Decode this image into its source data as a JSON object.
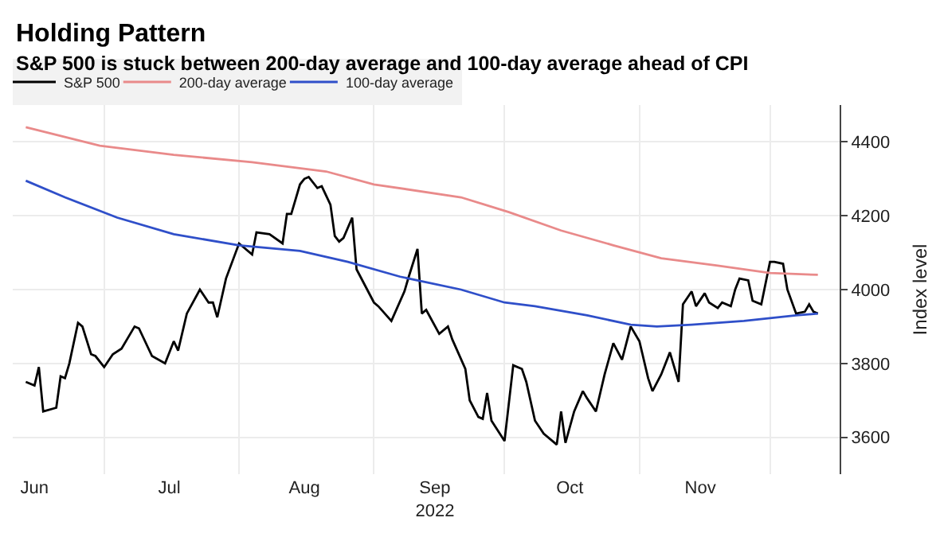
{
  "chart_data": {
    "type": "line",
    "title": "Holding Pattern",
    "subtitle": "S&P 500 is stuck between 200-day average and 100-day average ahead of CPI",
    "ylabel": "Index level",
    "xlim": [
      "2022-06-10",
      "2022-12-17"
    ],
    "xticks": [
      {
        "value": "2022-06-15",
        "label": "Jun"
      },
      {
        "value": "2022-07-16",
        "label": "Jul"
      },
      {
        "value": "2022-08-16",
        "label": "Aug"
      },
      {
        "value": "2022-09-15",
        "label": "Sep\n2022"
      },
      {
        "value": "2022-10-16",
        "label": "Oct"
      },
      {
        "value": "2022-11-15",
        "label": "Nov"
      }
    ],
    "ylim": [
      3500,
      4500
    ],
    "yticks": [
      3600,
      3800,
      4000,
      4200,
      4400
    ],
    "grid": true,
    "legend": "top left",
    "line_style": "solid",
    "series": [
      {
        "name": "S&P 500",
        "color": "#000000",
        "x": [
          "2022-06-13",
          "2022-06-15",
          "2022-06-16",
          "2022-06-17",
          "2022-06-20",
          "2022-06-21",
          "2022-06-22",
          "2022-06-23",
          "2022-06-25",
          "2022-06-26",
          "2022-06-28",
          "2022-06-29",
          "2022-07-01",
          "2022-07-03",
          "2022-07-05",
          "2022-07-08",
          "2022-07-09",
          "2022-07-12",
          "2022-07-15",
          "2022-07-17",
          "2022-07-18",
          "2022-07-20",
          "2022-07-23",
          "2022-07-25",
          "2022-07-26",
          "2022-07-27",
          "2022-07-29",
          "2022-08-01",
          "2022-08-04",
          "2022-08-05",
          "2022-08-08",
          "2022-08-11",
          "2022-08-12",
          "2022-08-13",
          "2022-08-15",
          "2022-08-16",
          "2022-08-17",
          "2022-08-19",
          "2022-08-20",
          "2022-08-22",
          "2022-08-23",
          "2022-08-24",
          "2022-08-25",
          "2022-08-27",
          "2022-08-28",
          "2022-09-01",
          "2022-09-02",
          "2022-09-05",
          "2022-09-08",
          "2022-09-09",
          "2022-09-11",
          "2022-09-12",
          "2022-09-13",
          "2022-09-16",
          "2022-09-18",
          "2022-09-19",
          "2022-09-22",
          "2022-09-23",
          "2022-09-25",
          "2022-09-26",
          "2022-09-27",
          "2022-09-28",
          "2022-10-01",
          "2022-10-03",
          "2022-10-05",
          "2022-10-06",
          "2022-10-08",
          "2022-10-10",
          "2022-10-13",
          "2022-10-14",
          "2022-10-15",
          "2022-10-17",
          "2022-10-19",
          "2022-10-20",
          "2022-10-22",
          "2022-10-24",
          "2022-10-26",
          "2022-10-28",
          "2022-10-30",
          "2022-11-01",
          "2022-11-03",
          "2022-11-04",
          "2022-11-06",
          "2022-11-08",
          "2022-11-10",
          "2022-11-11",
          "2022-11-13",
          "2022-11-14",
          "2022-11-16",
          "2022-11-17",
          "2022-11-19",
          "2022-11-20",
          "2022-11-22",
          "2022-11-23",
          "2022-11-24",
          "2022-11-26",
          "2022-11-27",
          "2022-11-29",
          "2022-12-01",
          "2022-12-02",
          "2022-12-04",
          "2022-12-05",
          "2022-12-07",
          "2022-12-09",
          "2022-12-10",
          "2022-12-11",
          "2022-12-12"
        ],
        "values": [
          3750,
          3740,
          3790,
          3670,
          3680,
          3765,
          3760,
          3800,
          3910,
          3900,
          3825,
          3820,
          3790,
          3825,
          3840,
          3900,
          3895,
          3820,
          3800,
          3860,
          3835,
          3935,
          4000,
          3965,
          3965,
          3925,
          4030,
          4125,
          4095,
          4155,
          4150,
          4125,
          4205,
          4205,
          4285,
          4300,
          4305,
          4275,
          4280,
          4230,
          4145,
          4130,
          4140,
          4195,
          4055,
          3965,
          3955,
          3915,
          3995,
          4035,
          4110,
          3935,
          3945,
          3880,
          3900,
          3865,
          3785,
          3700,
          3655,
          3650,
          3720,
          3645,
          3590,
          3795,
          3785,
          3750,
          3645,
          3610,
          3580,
          3670,
          3585,
          3670,
          3725,
          3705,
          3670,
          3770,
          3855,
          3810,
          3900,
          3860,
          3760,
          3725,
          3770,
          3830,
          3750,
          3960,
          3995,
          3955,
          3990,
          3965,
          3950,
          3965,
          3955,
          4000,
          4030,
          4025,
          3970,
          3960,
          4075,
          4075,
          4070,
          4000,
          3935,
          3940,
          3960,
          3940,
          3935
        ]
      },
      {
        "name": "200-day average",
        "color": "#e98a8a",
        "x": [
          "2022-06-13",
          "2022-06-30",
          "2022-07-17",
          "2022-08-04",
          "2022-08-21",
          "2022-09-01",
          "2022-09-21",
          "2022-10-02",
          "2022-10-14",
          "2022-10-26",
          "2022-11-06",
          "2022-11-19",
          "2022-12-01",
          "2022-12-12"
        ],
        "values": [
          4440,
          4390,
          4365,
          4345,
          4320,
          4285,
          4250,
          4210,
          4160,
          4120,
          4085,
          4065,
          4045,
          4040
        ]
      },
      {
        "name": "100-day average",
        "color": "#2f4fc9",
        "x": [
          "2022-06-13",
          "2022-06-22",
          "2022-07-04",
          "2022-07-17",
          "2022-08-01",
          "2022-08-15",
          "2022-08-26",
          "2022-09-07",
          "2022-09-21",
          "2022-10-01",
          "2022-10-08",
          "2022-10-20",
          "2022-10-30",
          "2022-11-05",
          "2022-11-13",
          "2022-11-25",
          "2022-12-07",
          "2022-12-12"
        ],
        "values": [
          4295,
          4250,
          4195,
          4150,
          4120,
          4105,
          4075,
          4035,
          4000,
          3965,
          3955,
          3930,
          3905,
          3900,
          3905,
          3915,
          3930,
          3935
        ]
      }
    ]
  }
}
